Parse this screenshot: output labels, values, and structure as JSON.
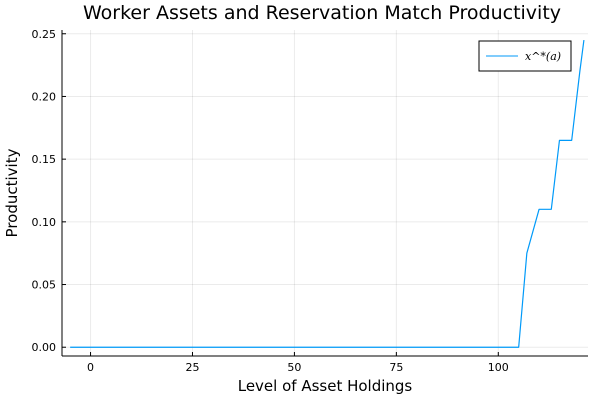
{
  "chart_data": {
    "type": "line",
    "title": "Worker Assets and Reservation Match Productivity",
    "xlabel": "Level of Asset Holdings",
    "ylabel": "Productivity",
    "xlim": [
      -7,
      122
    ],
    "ylim": [
      -0.007,
      0.253
    ],
    "xticks": [
      0,
      25,
      50,
      75,
      100
    ],
    "xtick_labels": [
      "0",
      "25",
      "50",
      "75",
      "100"
    ],
    "yticks": [
      0.0,
      0.05,
      0.1,
      0.15,
      0.2,
      0.25
    ],
    "ytick_labels": [
      "0.00",
      "0.05",
      "0.10",
      "0.15",
      "0.20",
      "0.25"
    ],
    "grid": true,
    "legend_position": "top-right",
    "series": [
      {
        "name": "x^*(a)",
        "color": "#009af9",
        "x": [
          -5,
          105,
          107,
          110,
          113,
          115,
          118,
          120,
          121
        ],
        "y": [
          0.0,
          0.0,
          0.075,
          0.11,
          0.11,
          0.165,
          0.165,
          0.22,
          0.245
        ]
      }
    ]
  }
}
